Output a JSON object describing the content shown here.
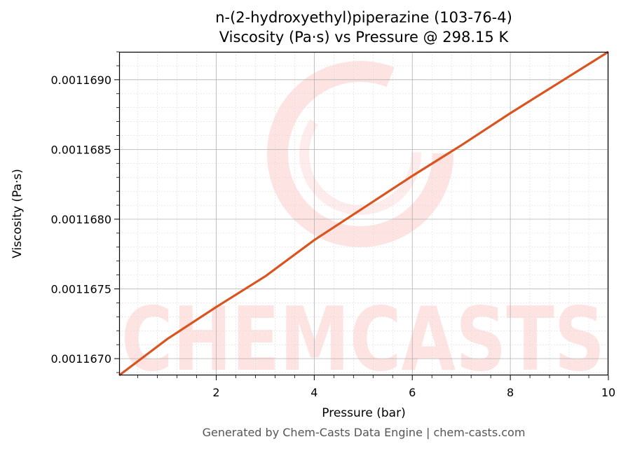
{
  "chart_data": {
    "type": "line",
    "title": "n-(2-hydroxyethyl)piperazine (103-76-4)",
    "subtitle": "Viscosity (Pa·s) vs Pressure @ 298.15 K",
    "xlabel": "Pressure (bar)",
    "ylabel": "Viscosity (Pa·s)",
    "xlim": [
      0.02,
      10
    ],
    "ylim": [
      0.00116688,
      0.0011692
    ],
    "xticks": [
      2,
      4,
      6,
      8,
      10
    ],
    "xtick_labels": [
      "2",
      "4",
      "6",
      "8",
      "10"
    ],
    "yticks": [
      0.001167,
      0.0011675,
      0.001168,
      0.0011685,
      0.001169
    ],
    "ytick_labels": [
      "0.0011670",
      "0.0011675",
      "0.0011680",
      "0.0011685",
      "0.0011690"
    ],
    "grid": true,
    "line_color": "#d9541e",
    "series": [
      {
        "x": [
          0.02,
          1,
          2,
          3,
          4,
          5,
          6,
          7,
          8,
          9,
          10
        ],
        "values": [
          0.00116688,
          0.00116714,
          0.00116737,
          0.00116759,
          0.00116785,
          0.00116808,
          0.00116831,
          0.00116853,
          0.00116876,
          0.00116898,
          0.0011692
        ]
      }
    ]
  },
  "watermark": {
    "text": "CHEMCASTS",
    "color": "#fde4e2"
  },
  "footer": "Generated by Chem-Casts Data Engine | chem-casts.com"
}
